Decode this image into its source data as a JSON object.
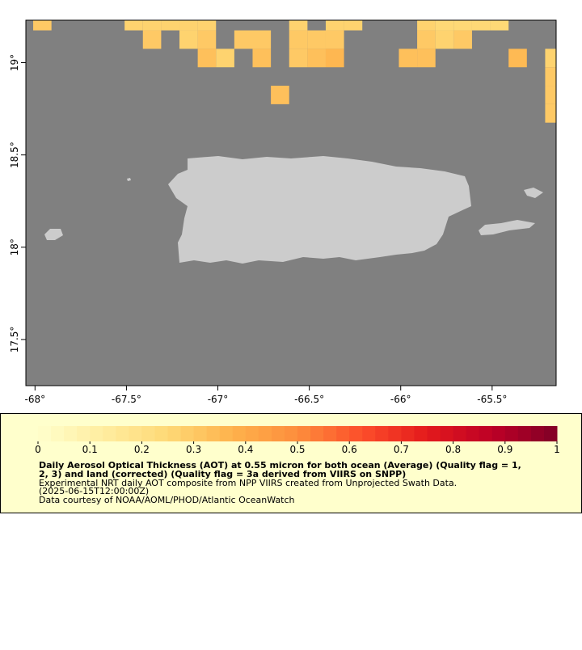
{
  "chart_data": {
    "type": "heatmap",
    "title": [
      "Daily Aerosol Optical Thickness (AOT) at 0.55 micron for both ocean (Average) (Quality flag = 1,",
      "2, 3) and land (corrected) (Quality flag = 3a derived from VIIRS on SNPP)"
    ],
    "subtitle": [
      "Experimental NRT daily AOT composite from NPP VIIRS created from Unprojected Swath Data.",
      "(2025-06-15T12:00:00Z)",
      "Data courtesy of NOAA/AOML/PHOD/Atlantic OceanWatch"
    ],
    "xlim": [
      -68.05,
      -65.15
    ],
    "ylim": [
      17.25,
      19.23
    ],
    "xticks": [
      {
        "value": -68,
        "label": "-68°"
      },
      {
        "value": -67.5,
        "label": "-67.5°"
      },
      {
        "value": -67,
        "label": "-67°"
      },
      {
        "value": -66.5,
        "label": "-66.5°"
      },
      {
        "value": -66,
        "label": "-66°"
      },
      {
        "value": -65.5,
        "label": "-65.5°"
      }
    ],
    "yticks": [
      {
        "value": 17.5,
        "label": "17.5°"
      },
      {
        "value": 18,
        "label": "18°"
      },
      {
        "value": 18.5,
        "label": "18.5°"
      },
      {
        "value": 19,
        "label": "19°"
      }
    ],
    "cell_size": 0.1,
    "clim": [
      0,
      1
    ],
    "cticks": [
      0,
      0.1,
      0.2,
      0.3,
      0.4,
      0.5,
      0.6,
      0.7,
      0.8,
      0.9,
      1
    ],
    "colormap": [
      "#ffffcc",
      "#ffeda0",
      "#fed976",
      "#feb24c",
      "#fd8d3c",
      "#fc4e2a",
      "#e31a1c",
      "#bd0026",
      "#800026"
    ],
    "colorbar_steps": 40,
    "cells": [
      {
        "lon": -67.96,
        "lat": 19.225,
        "value": 0.3
      },
      {
        "lon": -67.46,
        "lat": 19.225,
        "value": 0.27
      },
      {
        "lon": -67.36,
        "lat": 19.225,
        "value": 0.27
      },
      {
        "lon": -67.26,
        "lat": 19.225,
        "value": 0.27
      },
      {
        "lon": -67.16,
        "lat": 19.225,
        "value": 0.27
      },
      {
        "lon": -67.06,
        "lat": 19.225,
        "value": 0.27
      },
      {
        "lon": -66.56,
        "lat": 19.225,
        "value": 0.27
      },
      {
        "lon": -66.36,
        "lat": 19.225,
        "value": 0.27
      },
      {
        "lon": -66.26,
        "lat": 19.225,
        "value": 0.27
      },
      {
        "lon": -65.86,
        "lat": 19.225,
        "value": 0.27
      },
      {
        "lon": -65.76,
        "lat": 19.225,
        "value": 0.25
      },
      {
        "lon": -65.66,
        "lat": 19.225,
        "value": 0.25
      },
      {
        "lon": -65.56,
        "lat": 19.225,
        "value": 0.25
      },
      {
        "lon": -65.46,
        "lat": 19.225,
        "value": 0.25
      },
      {
        "lon": -67.36,
        "lat": 19.125,
        "value": 0.3
      },
      {
        "lon": -67.16,
        "lat": 19.125,
        "value": 0.27
      },
      {
        "lon": -67.06,
        "lat": 19.125,
        "value": 0.3
      },
      {
        "lon": -66.86,
        "lat": 19.125,
        "value": 0.3
      },
      {
        "lon": -66.76,
        "lat": 19.125,
        "value": 0.3
      },
      {
        "lon": -66.56,
        "lat": 19.125,
        "value": 0.3
      },
      {
        "lon": -66.46,
        "lat": 19.125,
        "value": 0.3
      },
      {
        "lon": -66.36,
        "lat": 19.125,
        "value": 0.3
      },
      {
        "lon": -65.86,
        "lat": 19.125,
        "value": 0.3
      },
      {
        "lon": -65.76,
        "lat": 19.125,
        "value": 0.27
      },
      {
        "lon": -65.66,
        "lat": 19.125,
        "value": 0.3
      },
      {
        "lon": -67.06,
        "lat": 19.025,
        "value": 0.33
      },
      {
        "lon": -66.96,
        "lat": 19.025,
        "value": 0.27
      },
      {
        "lon": -66.76,
        "lat": 19.025,
        "value": 0.33
      },
      {
        "lon": -66.56,
        "lat": 19.025,
        "value": 0.3
      },
      {
        "lon": -66.46,
        "lat": 19.025,
        "value": 0.33
      },
      {
        "lon": -66.36,
        "lat": 19.025,
        "value": 0.36
      },
      {
        "lon": -65.96,
        "lat": 19.025,
        "value": 0.33
      },
      {
        "lon": -65.86,
        "lat": 19.025,
        "value": 0.33
      },
      {
        "lon": -65.36,
        "lat": 19.025,
        "value": 0.35
      },
      {
        "lon": -65.16,
        "lat": 19.025,
        "value": 0.27
      },
      {
        "lon": -65.16,
        "lat": 18.925,
        "value": 0.3
      },
      {
        "lon": -66.66,
        "lat": 18.825,
        "value": 0.33
      },
      {
        "lon": -65.16,
        "lat": 18.825,
        "value": 0.3
      },
      {
        "lon": -65.16,
        "lat": 18.725,
        "value": 0.3
      }
    ]
  }
}
